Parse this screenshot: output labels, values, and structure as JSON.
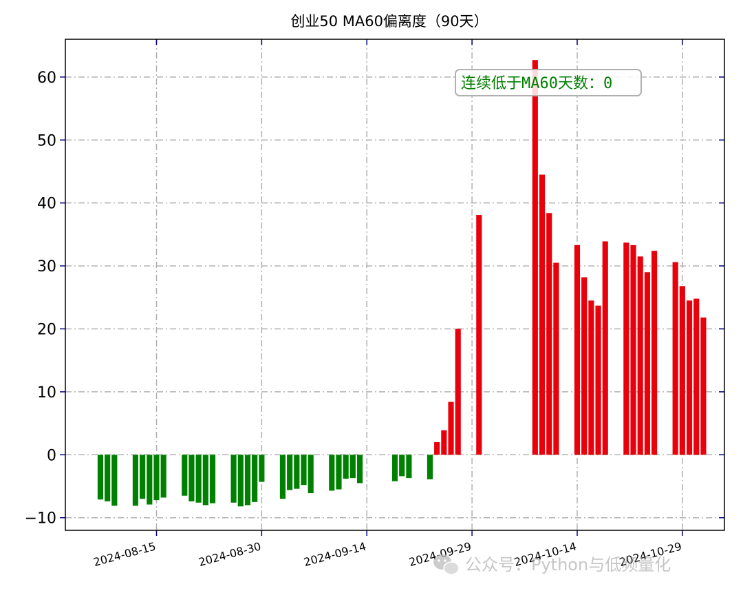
{
  "chart_data": {
    "type": "bar",
    "title": "创业50 MA60偏离度（90天）",
    "xlabel": "",
    "ylabel": "",
    "ylim": [
      -12,
      66
    ],
    "yticks": [
      -10,
      0,
      10,
      20,
      30,
      40,
      50,
      60
    ],
    "xlim": [
      "2024-08-02",
      "2024-11-04"
    ],
    "xticks": [
      "2024-08-15",
      "2024-08-30",
      "2024-09-14",
      "2024-09-29",
      "2024-10-14",
      "2024-10-29"
    ],
    "grid": true,
    "colors": {
      "positive": "#e8000b",
      "negative": "#008000",
      "ticks": "#00008b"
    },
    "x": [
      "2024-08-07",
      "2024-08-08",
      "2024-08-09",
      "2024-08-12",
      "2024-08-13",
      "2024-08-14",
      "2024-08-15",
      "2024-08-16",
      "2024-08-19",
      "2024-08-20",
      "2024-08-21",
      "2024-08-22",
      "2024-08-23",
      "2024-08-26",
      "2024-08-27",
      "2024-08-28",
      "2024-08-29",
      "2024-08-30",
      "2024-09-02",
      "2024-09-03",
      "2024-09-04",
      "2024-09-05",
      "2024-09-06",
      "2024-09-09",
      "2024-09-10",
      "2024-09-11",
      "2024-09-12",
      "2024-09-13",
      "2024-09-18",
      "2024-09-19",
      "2024-09-20",
      "2024-09-23",
      "2024-09-24",
      "2024-09-25",
      "2024-09-26",
      "2024-09-27",
      "2024-09-30",
      "2024-10-08",
      "2024-10-09",
      "2024-10-10",
      "2024-10-11",
      "2024-10-14",
      "2024-10-15",
      "2024-10-16",
      "2024-10-17",
      "2024-10-18",
      "2024-10-21",
      "2024-10-22",
      "2024-10-23",
      "2024-10-24",
      "2024-10-25",
      "2024-10-28",
      "2024-10-29",
      "2024-10-30",
      "2024-10-31",
      "2024-11-01"
    ],
    "values": [
      -7.1,
      -7.4,
      -8.1,
      -8.1,
      -7.0,
      -7.9,
      -7.2,
      -6.8,
      -6.5,
      -7.4,
      -7.6,
      -8.0,
      -7.7,
      -7.6,
      -8.2,
      -8.0,
      -7.5,
      -4.3,
      -7.0,
      -5.6,
      -5.4,
      -4.8,
      -6.1,
      -5.7,
      -5.5,
      -3.8,
      -3.7,
      -4.5,
      -4.2,
      -3.4,
      -3.7,
      -3.9,
      2.0,
      3.9,
      8.4,
      20.0,
      38.1,
      62.7,
      44.5,
      38.4,
      30.5,
      33.3,
      28.2,
      24.5,
      23.7,
      33.9,
      33.7,
      33.3,
      31.5,
      29.0,
      32.4,
      30.6,
      26.8,
      24.5,
      24.8,
      21.8
    ]
  },
  "annotation": {
    "text": "连续低于MA60天数：0"
  },
  "watermark": {
    "text": "公众号：Python与低频量化",
    "icon": "wechat-icon"
  }
}
